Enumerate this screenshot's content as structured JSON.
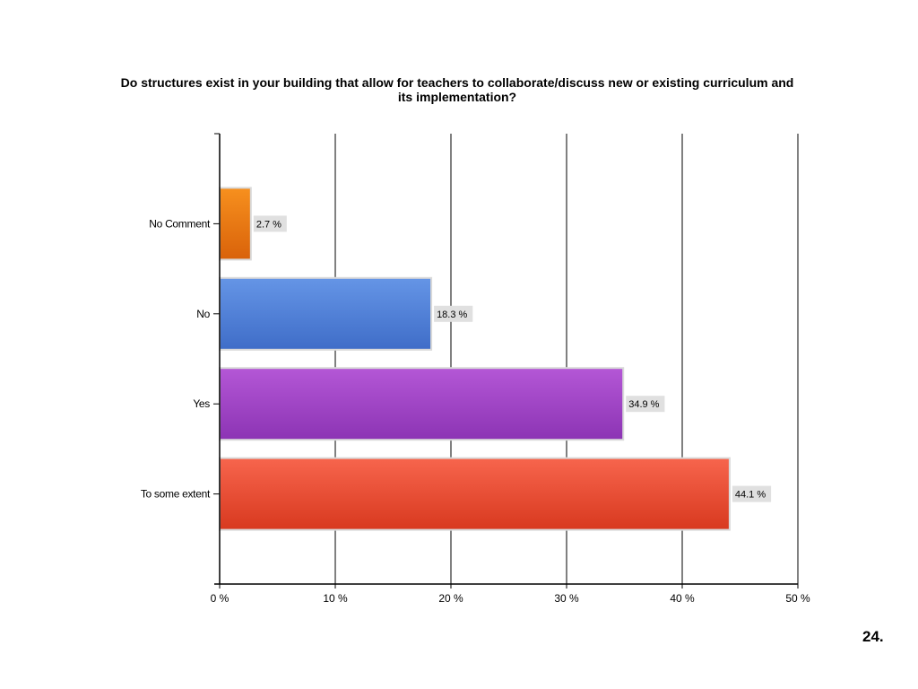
{
  "chart_data": {
    "type": "bar",
    "orientation": "horizontal",
    "title": "Do structures exist in your building that allow for teachers to collaborate/discuss new or existing curriculum and its implementation?",
    "categories": [
      "No Comment",
      "No",
      "Yes",
      "To some extent"
    ],
    "values": [
      2.7,
      18.3,
      34.9,
      44.1
    ],
    "value_labels": [
      "2.7 %",
      "18.3 %",
      "34.9 %",
      "44.1 %"
    ],
    "xlim": [
      0,
      50
    ],
    "xticks": [
      0,
      10,
      20,
      30,
      40,
      50
    ],
    "xtick_labels": [
      "0 %",
      "10 %",
      "20 %",
      "30 %",
      "40 %",
      "50 %"
    ],
    "xlabel": "",
    "ylabel": "",
    "grid": true,
    "legend": "none",
    "colors": [
      [
        "#f7901e",
        "#d9620a"
      ],
      [
        "#6595e6",
        "#3f6dc8"
      ],
      [
        "#b457d6",
        "#8c34b4"
      ],
      [
        "#f7654d",
        "#d8391f"
      ]
    ]
  },
  "page_number": "24."
}
